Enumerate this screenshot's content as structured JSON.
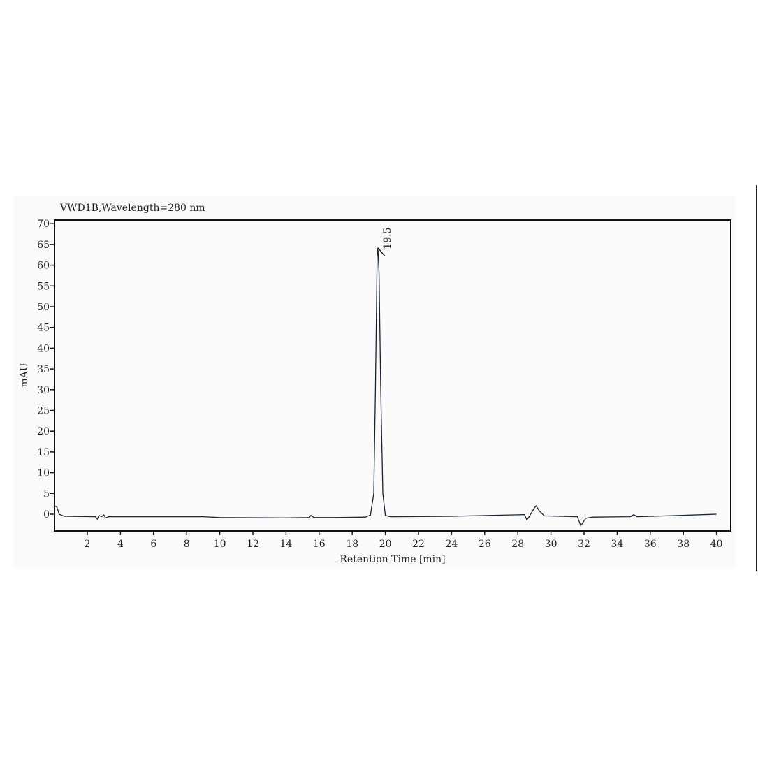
{
  "chart_data": {
    "type": "line",
    "title": "VWD1B,Wavelength=280 nm",
    "xlabel": "Retention Time [min]",
    "ylabel": "mAU",
    "xlim": [
      0,
      41
    ],
    "ylim": [
      -4,
      71
    ],
    "xticks": [
      2,
      4,
      6,
      8,
      10,
      12,
      14,
      16,
      18,
      20,
      22,
      24,
      26,
      28,
      30,
      32,
      34,
      36,
      38,
      40
    ],
    "yticks": [
      0,
      5,
      10,
      15,
      20,
      25,
      30,
      35,
      40,
      45,
      50,
      55,
      60,
      65,
      70
    ],
    "grid": false,
    "line_color": "#1a2333",
    "annotations": [
      {
        "label": "19.5",
        "x": 19.55,
        "y": 64.2
      }
    ],
    "series": [
      {
        "x": [
          0,
          0.15,
          0.3,
          0.6,
          2.5,
          2.6,
          2.7,
          2.85,
          3.0,
          3.1,
          3.3,
          9,
          10,
          14,
          15.4,
          15.5,
          15.7,
          17,
          18.8,
          19.1,
          19.3,
          19.4,
          19.5,
          19.55,
          19.62,
          19.72,
          19.85,
          20,
          20.3,
          24,
          28.4,
          28.55,
          28.7,
          29.0,
          29.1,
          29.3,
          29.6,
          31.6,
          31.8,
          32.1,
          32.5,
          34.8,
          35.0,
          35.2,
          37,
          40
        ],
        "y": [
          2,
          1.8,
          0,
          -0.5,
          -0.6,
          -1.2,
          -0.3,
          -0.6,
          -0.2,
          -0.9,
          -0.6,
          -0.6,
          -0.8,
          -0.9,
          -0.8,
          -0.3,
          -0.8,
          -0.8,
          -0.7,
          -0.2,
          5,
          30,
          62,
          64.2,
          58,
          30,
          5,
          -0.3,
          -0.6,
          -0.5,
          -0.1,
          -1.4,
          -0.5,
          1.5,
          2.0,
          0.8,
          -0.4,
          -0.6,
          -2.8,
          -1.0,
          -0.7,
          -0.6,
          -0.1,
          -0.6,
          -0.4,
          0
        ]
      }
    ]
  }
}
